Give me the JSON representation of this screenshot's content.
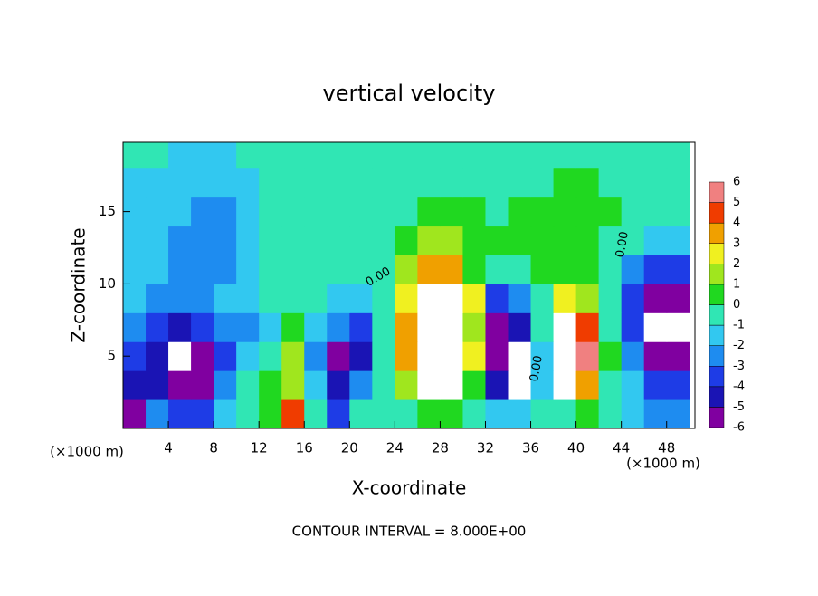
{
  "chart_data": {
    "type": "heatmap",
    "title": "vertical velocity",
    "xlabel": "X-coordinate",
    "ylabel": "Z-coordinate",
    "x_unit_left": "(×1000 m)",
    "x_unit_right": "(×1000 m)",
    "footer": "CONTOUR INTERVAL = 8.000E+00",
    "contour_labels": [
      "0.00",
      "0.00",
      "0.00"
    ],
    "x": [
      1,
      3,
      5,
      7,
      9,
      11,
      13,
      15,
      17,
      19,
      21,
      23,
      25,
      27,
      29,
      31,
      33,
      35,
      37,
      39,
      41,
      43,
      45,
      47,
      49
    ],
    "z": [
      1,
      3,
      5,
      7,
      9,
      11,
      13,
      15,
      17,
      19
    ],
    "values": [
      [
        -5,
        -2,
        -3,
        -3,
        -1,
        0,
        1,
        5,
        0,
        -3,
        0,
        0,
        0,
        1,
        1,
        0,
        -1,
        -1,
        0,
        0,
        1,
        0,
        -1,
        -2,
        -2
      ],
      [
        -4,
        -4,
        -5,
        -5,
        -2,
        0,
        1,
        2,
        -1,
        -4,
        -2,
        0,
        2,
        7,
        7,
        1,
        -4,
        -7,
        -1,
        7,
        4,
        0,
        -1,
        -3,
        -3
      ],
      [
        -3,
        -4,
        -7,
        -5,
        -3,
        -1,
        0,
        2,
        -2,
        -5,
        -4,
        0,
        4,
        7,
        7,
        3,
        -5,
        -7,
        -1,
        7,
        6,
        1,
        -2,
        -5,
        -5
      ],
      [
        -2,
        -3,
        -4,
        -3,
        -2,
        -2,
        -1,
        1,
        -1,
        -2,
        -3,
        0,
        4,
        7,
        7,
        2,
        -5,
        -4,
        0,
        7,
        5,
        0,
        -3,
        -7,
        -7
      ],
      [
        -1,
        -2,
        -2,
        -2,
        -1,
        -1,
        0,
        0,
        0,
        -1,
        -1,
        0,
        3,
        7,
        7,
        3,
        -3,
        -2,
        0,
        3,
        2,
        0,
        -3,
        -5,
        -5
      ],
      [
        -1,
        -1,
        -2,
        -2,
        -2,
        -1,
        0,
        0,
        0,
        0,
        0,
        0,
        2,
        4,
        4,
        1,
        0,
        0,
        1,
        1,
        1,
        0,
        -2,
        -3,
        -3
      ],
      [
        -1,
        -1,
        -2,
        -2,
        -2,
        -1,
        0,
        0,
        0,
        0,
        0,
        0,
        1,
        2,
        2,
        1,
        1,
        1,
        1,
        1,
        1,
        0,
        0,
        -1,
        -1
      ],
      [
        -1,
        -1,
        -1,
        -2,
        -2,
        -1,
        0,
        0,
        0,
        0,
        0,
        0,
        0,
        1,
        1,
        1,
        0,
        1,
        1,
        1,
        1,
        1,
        0,
        0,
        0
      ],
      [
        -1,
        -1,
        -1,
        -1,
        -1,
        -1,
        0,
        0,
        0,
        0,
        0,
        0,
        0,
        0,
        0,
        0,
        0,
        0,
        0,
        1,
        1,
        0,
        0,
        0,
        0
      ],
      [
        0,
        0,
        -1,
        -1,
        -1,
        0,
        0,
        0,
        0,
        0,
        0,
        0,
        0,
        0,
        0,
        0,
        0,
        0,
        0,
        0,
        0,
        0,
        0,
        0,
        0
      ]
    ],
    "xlim": [
      0,
      50.5
    ],
    "ylim": [
      0,
      19.8
    ],
    "xticks": [
      4,
      8,
      12,
      16,
      20,
      24,
      28,
      32,
      36,
      40,
      44,
      48
    ],
    "yticks": [
      5,
      10,
      15
    ],
    "levels": [
      -6,
      -5,
      -4,
      -3,
      -2,
      -1,
      0,
      1,
      2,
      3,
      4,
      5,
      6
    ],
    "colors": [
      "#8000a0",
      "#1a14b4",
      "#1e3ce6",
      "#1e8cf0",
      "#32c8f0",
      "#30e6b4",
      "#20d820",
      "#a0e61e",
      "#f0f020",
      "#f0a000",
      "#f03c00",
      "#f08080"
    ],
    "out_of_range_color": "#ffffff"
  }
}
